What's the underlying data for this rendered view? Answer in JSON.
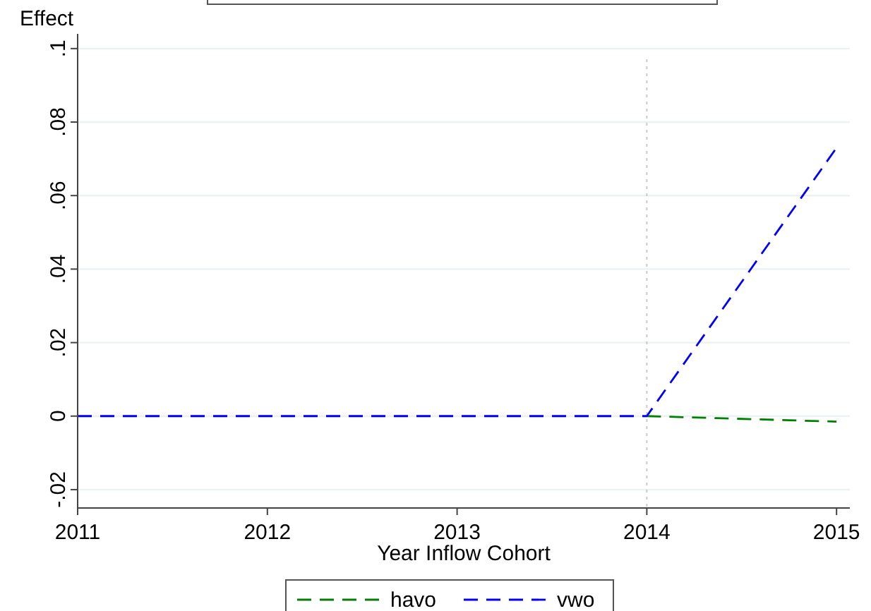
{
  "chart_data": {
    "type": "line",
    "xlabel": "Year Inflow Cohort",
    "ylabel": "Effect",
    "x": [
      2011,
      2012,
      2013,
      2014,
      2015
    ],
    "series": [
      {
        "name": "havo",
        "color": "#008000",
        "values": [
          null,
          null,
          null,
          0,
          -0.0015
        ]
      },
      {
        "name": "vwo",
        "color": "#0000ff",
        "values": [
          0,
          0,
          0,
          0,
          0.073
        ]
      }
    ],
    "xlim": [
      2011,
      2015.07
    ],
    "xticks": [
      2011,
      2012,
      2013,
      2014,
      2015
    ],
    "ylim": [
      -0.025,
      0.104
    ],
    "yticks": [
      {
        "value": -0.02,
        "label": "-.02"
      },
      0,
      {
        "value": 0.02,
        "label": ".02"
      },
      {
        "value": 0.04,
        "label": ".04"
      },
      {
        "value": 0.06,
        "label": ".06"
      },
      {
        "value": 0.08,
        "label": ".08"
      },
      {
        "value": 0.1,
        "label": ".1"
      }
    ],
    "ref_lines": [
      {
        "axis": "x",
        "value": 2014,
        "color": "#c8c8c8",
        "line_style": "dotted"
      }
    ],
    "grid": "y",
    "legend": "bottom",
    "line_style": "dashed",
    "marker": "none"
  }
}
